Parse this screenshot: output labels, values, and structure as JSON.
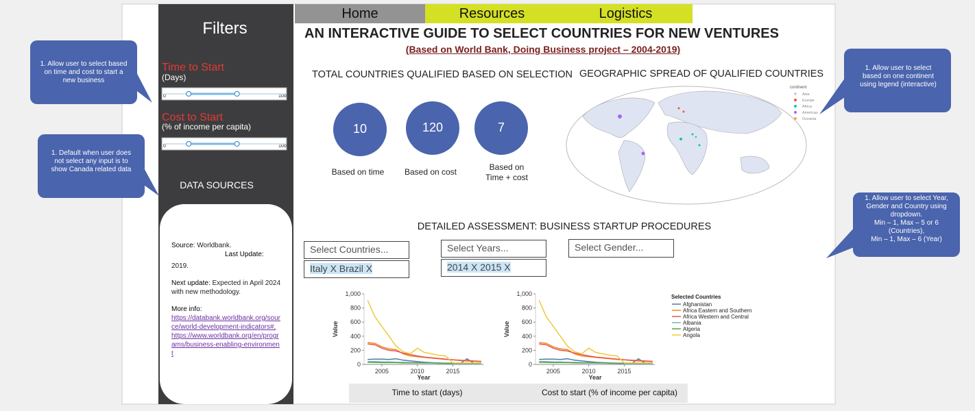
{
  "nav": [
    "Home",
    "Resources",
    "Logistics"
  ],
  "sidebar": {
    "title": "Filters",
    "time_filter": {
      "label": "Time to Start",
      "unit": "(Days)",
      "min": 0,
      "max": 100,
      "range": [
        20,
        60
      ]
    },
    "cost_filter": {
      "label": "Cost to Start",
      "unit": "(% of income per capita)",
      "min": 0,
      "max": 100,
      "range": [
        20,
        60
      ]
    },
    "sources_title": "DATA SOURCES",
    "sources": {
      "source_label": "Source",
      "source_value": ": Worldbank.",
      "update_label": "Last Update:",
      "update_value": "2019.",
      "next_label": "Next update",
      "next_value": ": Expected in April 2024 with new methodology.",
      "info_label": "More info",
      "info_colon": ":",
      "links": [
        "https://databank.worldbank.org/source/world-development-indicators#,",
        "https://www.worldbank.org/en/programs/business-enabling-environment"
      ]
    }
  },
  "header": {
    "title": "AN INTERACTIVE GUIDE TO SELECT COUNTRIES FOR NEW VENTURES",
    "subtitle": "(Based on World Bank, Doing Business project – 2004-2019)"
  },
  "totals": {
    "title": "TOTAL COUNTRIES QUALIFIED BASED ON SELECTION",
    "items": [
      {
        "value": 10,
        "label": "Based on time"
      },
      {
        "value": 120,
        "label": "Based on cost"
      },
      {
        "value": 7,
        "label": "Based on Time + cost"
      }
    ]
  },
  "map": {
    "title": "GEOGRAPHIC SPREAD OF QUALIFIED COUNTRIES",
    "legend_title": "continent",
    "legend": [
      {
        "name": "Asia",
        "color": "#c8d0f0"
      },
      {
        "name": "Europe",
        "color": "#ef553b"
      },
      {
        "name": "Africa",
        "color": "#00cc96"
      },
      {
        "name": "Americas",
        "color": "#ab63fa"
      },
      {
        "name": "Oceania",
        "color": "#ffa15a"
      }
    ]
  },
  "assessment": {
    "title": "DETAILED ASSESSMENT: BUSINESS STARTUP PROCEDURES",
    "dropdowns": [
      {
        "placeholder": "Select Countries...",
        "selected": "Italy X Brazil X"
      },
      {
        "placeholder": "Select Years...",
        "selected": "2014 X 2015 X"
      },
      {
        "placeholder": "Select Gender..."
      }
    ]
  },
  "chart_data": [
    {
      "type": "line",
      "caption": "Time to start (days)",
      "xlabel": "Year",
      "ylabel": "Value",
      "x": [
        2003,
        2004,
        2005,
        2006,
        2007,
        2008,
        2009,
        2010,
        2011,
        2012,
        2013,
        2014,
        2015,
        2016,
        2017,
        2018,
        2019
      ],
      "xlim": [
        2002.5,
        2019.3
      ],
      "xticks": [
        2005,
        2010,
        2015
      ],
      "ylim": [
        0,
        1000
      ],
      "yticks": [
        0,
        200,
        400,
        600,
        800,
        {
          "value": 1000,
          "label": "1,000"
        }
      ],
      "series": [
        {
          "color": "#4c78a8",
          "values": [
            70,
            75,
            75,
            70,
            80,
            60,
            50,
            40,
            30,
            25,
            20,
            15,
            10,
            10,
            80,
            15,
            15
          ]
        },
        {
          "color": "#f58518",
          "values": [
            310,
            300,
            250,
            220,
            210,
            150,
            120,
            110,
            100,
            90,
            80,
            70,
            65,
            60,
            55,
            50,
            45
          ]
        },
        {
          "color": "#e45756",
          "values": [
            290,
            280,
            230,
            200,
            190,
            160,
            140,
            120,
            105,
            95,
            85,
            75,
            65,
            55,
            50,
            45,
            40
          ]
        },
        {
          "color": "#72b7b2",
          "values": [
            40,
            40,
            35,
            35,
            30,
            30,
            25,
            25,
            20,
            20,
            15,
            15,
            10,
            10,
            10,
            8,
            8
          ]
        },
        {
          "color": "#54a24b",
          "values": [
            30,
            28,
            25,
            25,
            25,
            22,
            20,
            20,
            20,
            20,
            20,
            18,
            18,
            18,
            18,
            18,
            18
          ]
        },
        {
          "color": "#eeca3b",
          "values": [
            910,
            680,
            540,
            400,
            260,
            180,
            150,
            230,
            170,
            150,
            130,
            120,
            20,
            20,
            20,
            20,
            20
          ]
        }
      ]
    },
    {
      "type": "line",
      "caption": "Cost to start (% of income per capita)",
      "xlabel": "Year",
      "ylabel": "Value",
      "legend_title": "Selected Countries",
      "x": [
        2003,
        2004,
        2005,
        2006,
        2007,
        2008,
        2009,
        2010,
        2011,
        2012,
        2013,
        2014,
        2015,
        2016,
        2017,
        2018,
        2019
      ],
      "xlim": [
        2002.5,
        2019.3
      ],
      "xticks": [
        2005,
        2010,
        2015
      ],
      "ylim": [
        0,
        1000
      ],
      "yticks": [
        0,
        200,
        400,
        600,
        800,
        {
          "value": 1000,
          "label": "1,000"
        }
      ],
      "series": [
        {
          "name": "Afghanistan",
          "color": "#4c78a8",
          "values": [
            70,
            75,
            75,
            70,
            80,
            60,
            50,
            40,
            30,
            25,
            20,
            15,
            10,
            10,
            80,
            15,
            15
          ]
        },
        {
          "name": "Africa Eastern and Southern",
          "color": "#f58518",
          "values": [
            310,
            300,
            250,
            220,
            210,
            150,
            120,
            110,
            100,
            90,
            80,
            70,
            65,
            60,
            55,
            50,
            45
          ]
        },
        {
          "name": "Africa Western and Central",
          "color": "#e45756",
          "values": [
            290,
            280,
            230,
            200,
            190,
            160,
            140,
            120,
            105,
            95,
            85,
            75,
            65,
            55,
            50,
            45,
            40
          ]
        },
        {
          "name": "Albania",
          "color": "#72b7b2",
          "values": [
            40,
            40,
            35,
            35,
            30,
            30,
            25,
            25,
            20,
            20,
            15,
            15,
            10,
            10,
            10,
            8,
            8
          ]
        },
        {
          "name": "Algeria",
          "color": "#54a24b",
          "values": [
            30,
            28,
            25,
            25,
            25,
            22,
            20,
            20,
            20,
            20,
            20,
            18,
            18,
            18,
            18,
            18,
            18
          ]
        },
        {
          "name": "Angola",
          "color": "#eeca3b",
          "values": [
            910,
            680,
            540,
            400,
            260,
            180,
            150,
            230,
            170,
            150,
            130,
            120,
            20,
            20,
            20,
            20,
            20
          ]
        }
      ]
    }
  ],
  "callouts": [
    {
      "marker": "1.",
      "text": "Allow user to select based on  time and cost to start a new business"
    },
    {
      "marker": "1.",
      "text": "Default when user does not select any input is to show Canada related data"
    },
    {
      "marker": "1.",
      "text": "Allow user to select based on one continent using legend (interactive)"
    },
    {
      "marker": "1.",
      "text": "Allow user to select Year, Gender and Country using dropdown.\nMin – 1, Max – 5 or 6 (Countries),\nMin – 1, Max – 6 (Year)"
    }
  ]
}
